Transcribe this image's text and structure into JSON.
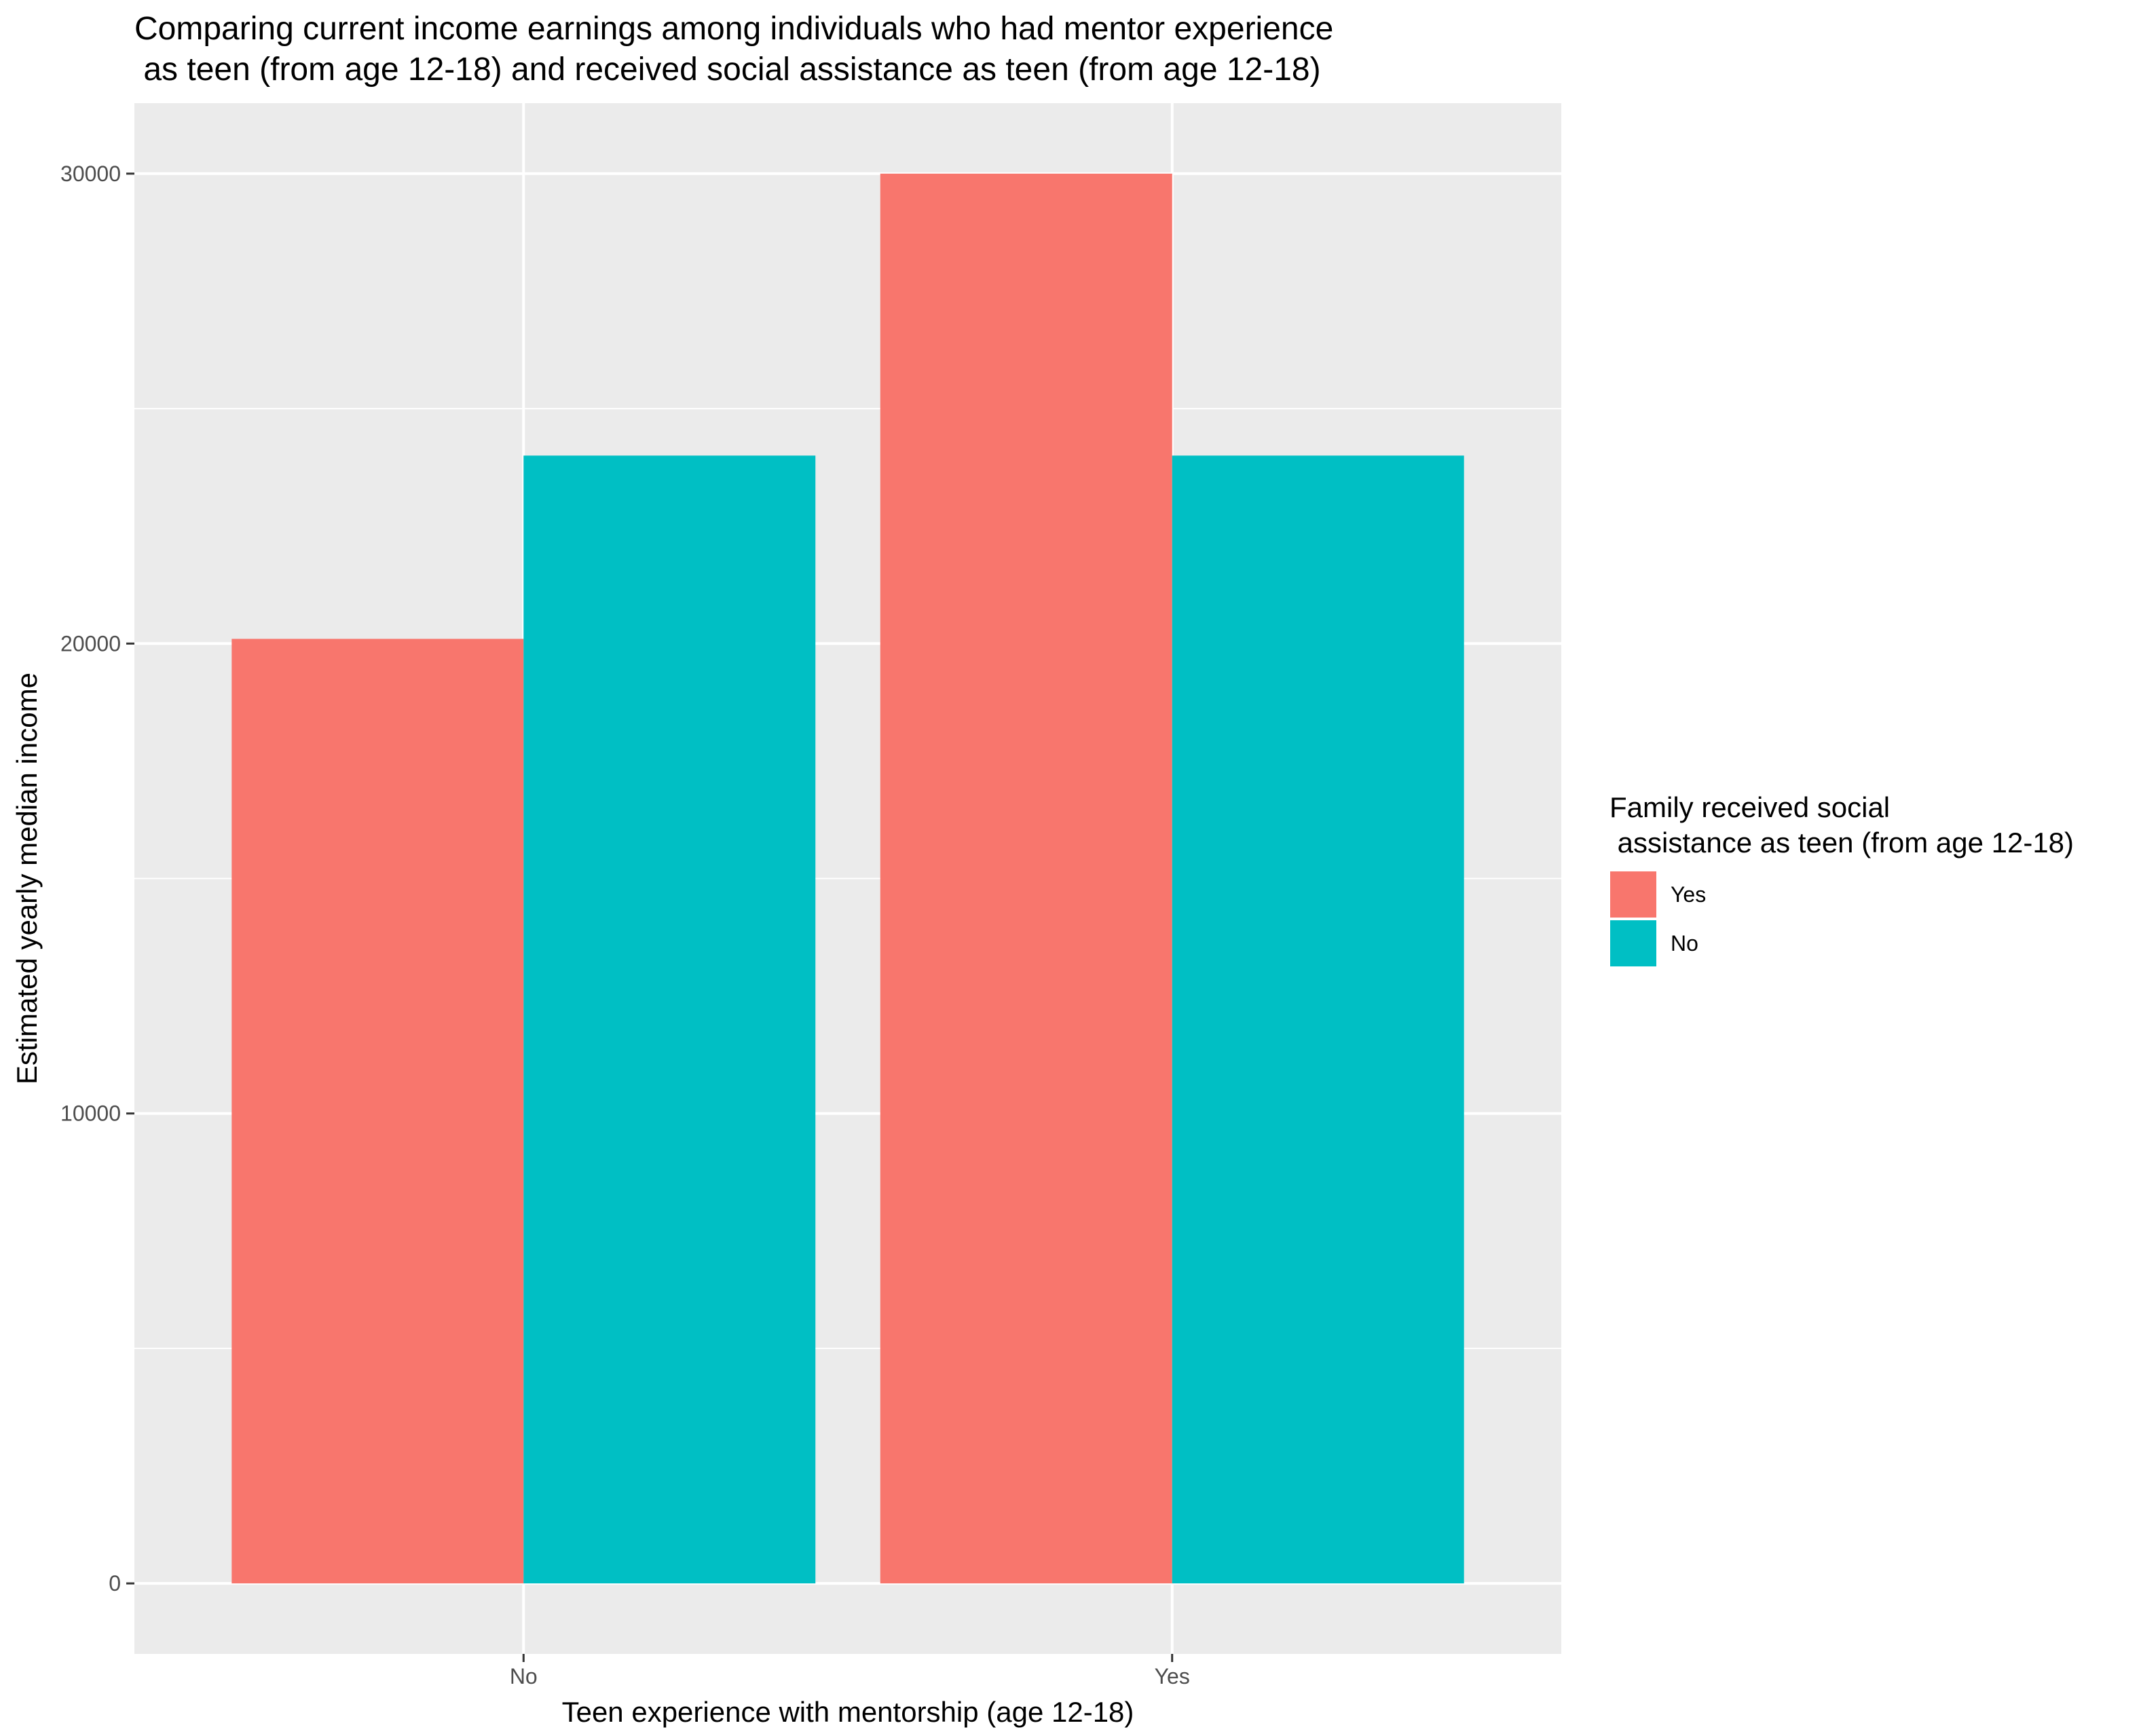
{
  "chart_data": {
    "type": "bar",
    "title": "Comparing current income earnings among individuals who had mentor experience",
    "title_line2": " as teen (from age 12-18) and received social assistance as teen (from age 12-18)",
    "xlabel": "Teen experience with mentorship (age 12-18)",
    "ylabel": "Estimated yearly median income",
    "categories": [
      "No",
      "Yes"
    ],
    "series": [
      {
        "name": "Yes",
        "color": "#F8766D",
        "values": [
          20100,
          30000
        ]
      },
      {
        "name": "No",
        "color": "#00BFC4",
        "values": [
          24000,
          24000
        ]
      }
    ],
    "ylim": [
      -1500,
      31500
    ],
    "yticks": [
      0,
      10000,
      20000,
      30000
    ],
    "ytick_labels": [
      "0",
      "10000",
      "20000",
      "30000"
    ],
    "grid": true,
    "legend": {
      "title_line1": "Family received social",
      "title_line2": " assistance as teen (from age 12-18)",
      "position": "right"
    }
  }
}
